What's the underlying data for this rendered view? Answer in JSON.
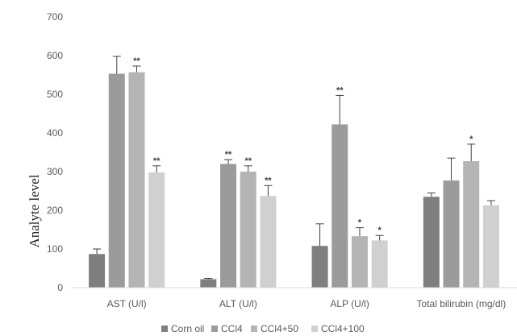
{
  "chart_data": {
    "type": "bar",
    "title": "",
    "xlabel": "",
    "ylabel": "Analyte level",
    "ylim": [
      0,
      700
    ],
    "yticks": [
      0,
      100,
      200,
      300,
      400,
      500,
      600,
      700
    ],
    "grid": false,
    "legend": "bottom",
    "categories": [
      "AST (U/l)",
      "ALT (U/l)",
      "ALP (U/l)",
      "Total bilirubin (mg/dl)"
    ],
    "series": [
      {
        "name": "Corn oil",
        "color": "#7f7f7f",
        "values": [
          87,
          22,
          108,
          235
        ],
        "errors": [
          13,
          2,
          57,
          10
        ],
        "sig": [
          "",
          "",
          "",
          ""
        ]
      },
      {
        "name": "CCl4",
        "color": "#9b9b9b",
        "values": [
          553,
          320,
          422,
          277
        ],
        "errors": [
          45,
          11,
          75,
          58
        ],
        "sig": [
          "",
          "**",
          "**",
          ""
        ]
      },
      {
        "name": "CCl4+50",
        "color": "#b4b4b4",
        "values": [
          557,
          300,
          133,
          327
        ],
        "errors": [
          16,
          15,
          22,
          44
        ],
        "sig": [
          "**",
          "**",
          "*",
          "*"
        ]
      },
      {
        "name": "CCl4+100",
        "color": "#d0d0d0",
        "values": [
          298,
          237,
          122,
          213
        ],
        "errors": [
          17,
          27,
          13,
          12
        ],
        "sig": [
          "**",
          "**",
          "*",
          ""
        ]
      }
    ]
  }
}
